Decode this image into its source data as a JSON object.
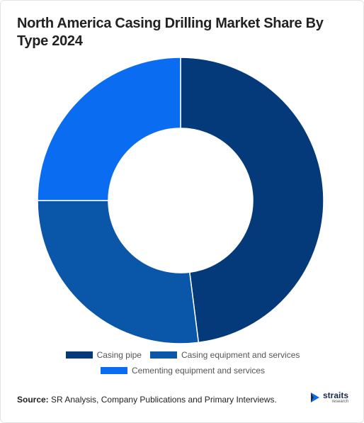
{
  "chart_data": {
    "type": "donut",
    "title": "North America Casing Drilling Market Share By Type 2024",
    "categories": [
      "Casing pipe",
      "Casing equipment and services",
      "Cementing equipment and services"
    ],
    "values": [
      48,
      27,
      25
    ],
    "colors": [
      "#053a7a",
      "#0a56a8",
      "#0a6cf0"
    ]
  },
  "source": {
    "label": "Source:",
    "text": "SR Analysis, Company Publications and Primary Interviews."
  },
  "logo": {
    "name": "straits",
    "tagline": "research"
  }
}
